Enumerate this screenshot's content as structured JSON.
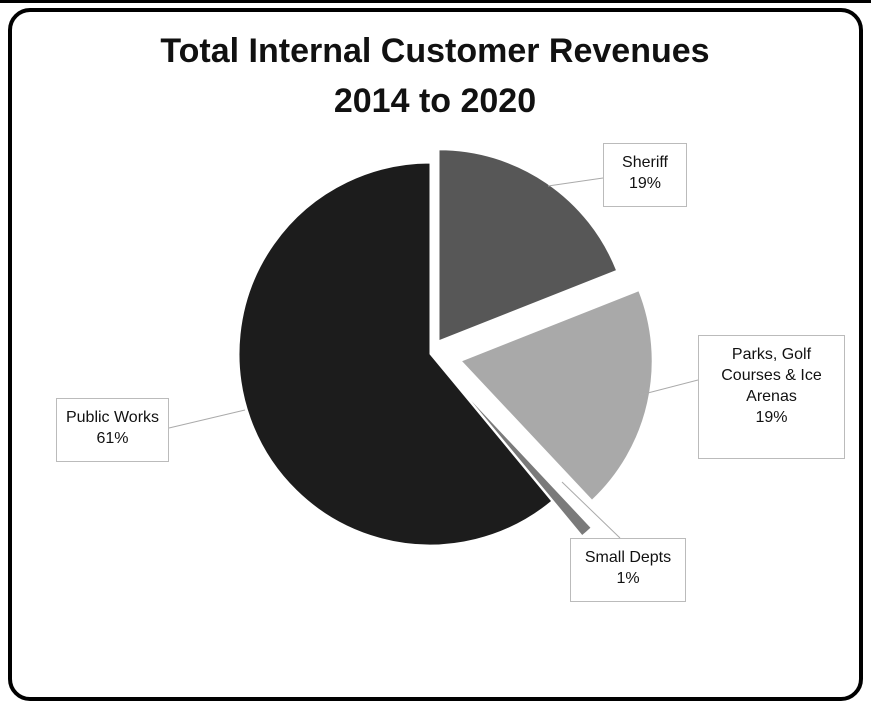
{
  "chart_data": {
    "type": "pie",
    "title": "Total Internal Customer Revenues 2014 to 2020",
    "categories": [
      "Sheriff",
      "Parks, Golf Courses & Ice Arenas",
      "Small Depts",
      "Public Works"
    ],
    "values": [
      19,
      19,
      1,
      61
    ],
    "value_labels": [
      "19%",
      "19%",
      "1%",
      "61%"
    ],
    "colors": [
      "#575757",
      "#a9a9a9",
      "#7a7a7a",
      "#1c1c1c"
    ]
  }
}
